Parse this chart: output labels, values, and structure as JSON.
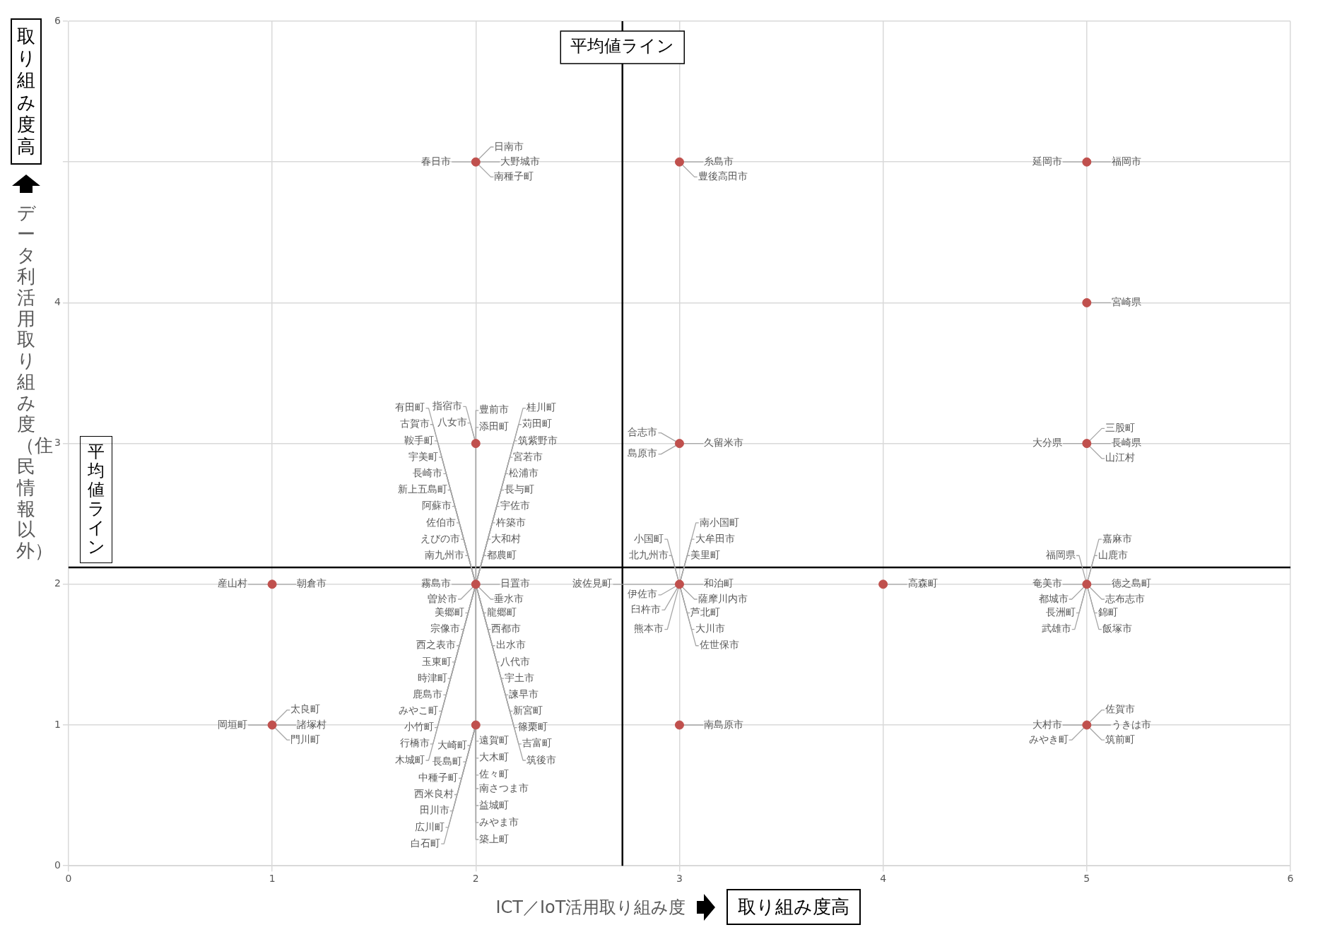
{
  "chart_data": {
    "type": "scatter",
    "xlabel": "ICT／IoT活用取り組み度",
    "ylabel": "データ利活用取り組み度（住民情報以外）",
    "x": [
      2,
      3,
      5,
      5,
      2,
      3,
      5,
      1,
      2,
      3,
      4,
      5,
      1,
      2,
      3,
      5
    ],
    "values": [
      5,
      5,
      5,
      4,
      3,
      3,
      3,
      2,
      2,
      2,
      2,
      2,
      1,
      1,
      1,
      1
    ],
    "color": "#c0504d",
    "marker": "circle",
    "grid": true,
    "xlim": [
      0,
      6
    ],
    "xticks": [
      0,
      1,
      2,
      3,
      4,
      5,
      6
    ],
    "ylim": [
      0,
      6
    ],
    "yticks": [
      0,
      1,
      2,
      3,
      4,
      {
        "value": 5,
        "label": null
      },
      6
    ],
    "ref_lines": [
      {
        "axis": "x",
        "value": 2.72,
        "label": "平均値ライン",
        "color": "#000000"
      },
      {
        "axis": "y",
        "value": 2.12,
        "label": "平均値ライン",
        "color": "#000000"
      }
    ],
    "annotations": [
      "取り組み度高",
      "取り組み度高",
      {
        "text": "大野城市",
        "x": 2,
        "y": 5
      },
      {
        "text": "春日市",
        "x": 2,
        "y": 5
      },
      {
        "text": "南種子町",
        "x": 2,
        "y": 5
      },
      {
        "text": "日南市",
        "x": 2,
        "y": 5
      },
      {
        "text": "糸島市",
        "x": 3,
        "y": 5
      },
      {
        "text": "豊後高田市",
        "x": 3,
        "y": 5
      },
      {
        "text": "福岡市",
        "x": 5,
        "y": 5
      },
      {
        "text": "延岡市",
        "x": 5,
        "y": 5
      },
      {
        "text": "宮崎県",
        "x": 5,
        "y": 4
      },
      {
        "text": "八女市",
        "x": 2,
        "y": 3
      },
      {
        "text": "指宿市",
        "x": 2,
        "y": 3
      },
      {
        "text": "久留米市",
        "x": 3,
        "y": 3
      },
      {
        "text": "島原市",
        "x": 3,
        "y": 3
      },
      {
        "text": "合志市",
        "x": 3,
        "y": 3
      },
      {
        "text": "長崎県",
        "x": 5,
        "y": 3
      },
      {
        "text": "大分県",
        "x": 5,
        "y": 3
      },
      {
        "text": "山江村",
        "x": 5,
        "y": 3
      },
      {
        "text": "三股町",
        "x": 5,
        "y": 3
      },
      {
        "text": "朝倉市",
        "x": 1,
        "y": 2
      },
      {
        "text": "産山村",
        "x": 1,
        "y": 2
      },
      {
        "text": "日置市",
        "x": 2,
        "y": 2
      },
      {
        "text": "霧島市",
        "x": 2,
        "y": 2
      },
      {
        "text": "垂水市",
        "x": 2,
        "y": 2
      },
      {
        "text": "曽於市",
        "x": 2,
        "y": 2
      },
      {
        "text": "龍郷町",
        "x": 2,
        "y": 2
      },
      {
        "text": "都農町",
        "x": 2,
        "y": 2
      },
      {
        "text": "美郷町",
        "x": 2,
        "y": 2
      },
      {
        "text": "南九州市",
        "x": 2,
        "y": 2
      },
      {
        "text": "西都市",
        "x": 2,
        "y": 2
      },
      {
        "text": "大和村",
        "x": 2,
        "y": 2
      },
      {
        "text": "宗像市",
        "x": 2,
        "y": 2
      },
      {
        "text": "えびの市",
        "x": 2,
        "y": 2
      },
      {
        "text": "出水市",
        "x": 2,
        "y": 2
      },
      {
        "text": "杵築市",
        "x": 2,
        "y": 2
      },
      {
        "text": "西之表市",
        "x": 2,
        "y": 2
      },
      {
        "text": "佐伯市",
        "x": 2,
        "y": 2
      },
      {
        "text": "八代市",
        "x": 2,
        "y": 2
      },
      {
        "text": "宇佐市",
        "x": 2,
        "y": 2
      },
      {
        "text": "玉東町",
        "x": 2,
        "y": 2
      },
      {
        "text": "阿蘇市",
        "x": 2,
        "y": 2
      },
      {
        "text": "宇土市",
        "x": 2,
        "y": 2
      },
      {
        "text": "長与町",
        "x": 2,
        "y": 2
      },
      {
        "text": "時津町",
        "x": 2,
        "y": 2
      },
      {
        "text": "新上五島町",
        "x": 2,
        "y": 2
      },
      {
        "text": "諫早市",
        "x": 2,
        "y": 2
      },
      {
        "text": "松浦市",
        "x": 2,
        "y": 2
      },
      {
        "text": "鹿島市",
        "x": 2,
        "y": 2
      },
      {
        "text": "長崎市",
        "x": 2,
        "y": 2
      },
      {
        "text": "新宮町",
        "x": 2,
        "y": 2
      },
      {
        "text": "宮若市",
        "x": 2,
        "y": 2
      },
      {
        "text": "みやこ町",
        "x": 2,
        "y": 2
      },
      {
        "text": "宇美町",
        "x": 2,
        "y": 2
      },
      {
        "text": "篠栗町",
        "x": 2,
        "y": 2
      },
      {
        "text": "筑紫野市",
        "x": 2,
        "y": 2
      },
      {
        "text": "小竹町",
        "x": 2,
        "y": 2
      },
      {
        "text": "鞍手町",
        "x": 2,
        "y": 2
      },
      {
        "text": "遠賀町",
        "x": 2,
        "y": 2
      },
      {
        "text": "添田町",
        "x": 2,
        "y": 2
      },
      {
        "text": "吉富町",
        "x": 2,
        "y": 2
      },
      {
        "text": "苅田町",
        "x": 2,
        "y": 2
      },
      {
        "text": "行橋市",
        "x": 2,
        "y": 2
      },
      {
        "text": "古賀市",
        "x": 2,
        "y": 2
      },
      {
        "text": "大木町",
        "x": 2,
        "y": 2
      },
      {
        "text": "豊前市",
        "x": 2,
        "y": 2
      },
      {
        "text": "筑後市",
        "x": 2,
        "y": 2
      },
      {
        "text": "桂川町",
        "x": 2,
        "y": 2
      },
      {
        "text": "木城町",
        "x": 2,
        "y": 2
      },
      {
        "text": "有田町",
        "x": 2,
        "y": 2
      },
      {
        "text": "佐々町",
        "x": 2,
        "y": 2
      },
      {
        "text": "和泊町",
        "x": 3,
        "y": 2
      },
      {
        "text": "伊佐市",
        "x": 3,
        "y": 2
      },
      {
        "text": "薩摩川内市",
        "x": 3,
        "y": 2
      },
      {
        "text": "臼杵市",
        "x": 3,
        "y": 2
      },
      {
        "text": "芦北町",
        "x": 3,
        "y": 2
      },
      {
        "text": "美里町",
        "x": 3,
        "y": 2
      },
      {
        "text": "北九州市",
        "x": 3,
        "y": 2
      },
      {
        "text": "大川市",
        "x": 3,
        "y": 2
      },
      {
        "text": "大牟田市",
        "x": 3,
        "y": 2
      },
      {
        "text": "波佐見町",
        "x": 3,
        "y": 2
      },
      {
        "text": "佐世保市",
        "x": 3,
        "y": 2
      },
      {
        "text": "熊本市",
        "x": 3,
        "y": 2
      },
      {
        "text": "小国町",
        "x": 3,
        "y": 2
      },
      {
        "text": "南小国町",
        "x": 3,
        "y": 2
      },
      {
        "text": "高森町",
        "x": 4,
        "y": 2
      },
      {
        "text": "徳之島町",
        "x": 5,
        "y": 2
      },
      {
        "text": "奄美市",
        "x": 5,
        "y": 2
      },
      {
        "text": "志布志市",
        "x": 5,
        "y": 2
      },
      {
        "text": "都城市",
        "x": 5,
        "y": 2
      },
      {
        "text": "錦町",
        "x": 5,
        "y": 2
      },
      {
        "text": "山鹿市",
        "x": 5,
        "y": 2
      },
      {
        "text": "長洲町",
        "x": 5,
        "y": 2
      },
      {
        "text": "福岡県",
        "x": 5,
        "y": 2
      },
      {
        "text": "飯塚市",
        "x": 5,
        "y": 2
      },
      {
        "text": "嘉麻市",
        "x": 5,
        "y": 2
      },
      {
        "text": "武雄市",
        "x": 5,
        "y": 2
      },
      {
        "text": "諸塚村",
        "x": 1,
        "y": 1
      },
      {
        "text": "岡垣町",
        "x": 1,
        "y": 1
      },
      {
        "text": "門川町",
        "x": 1,
        "y": 1
      },
      {
        "text": "太良町",
        "x": 1,
        "y": 1
      },
      {
        "text": "中種子町",
        "x": 2,
        "y": 1
      },
      {
        "text": "大崎町",
        "x": 2,
        "y": 1
      },
      {
        "text": "長島町",
        "x": 2,
        "y": 1
      },
      {
        "text": "南さつま市",
        "x": 2,
        "y": 1
      },
      {
        "text": "西米良村",
        "x": 2,
        "y": 1
      },
      {
        "text": "益城町",
        "x": 2,
        "y": 1
      },
      {
        "text": "田川市",
        "x": 2,
        "y": 1
      },
      {
        "text": "みやま市",
        "x": 2,
        "y": 1
      },
      {
        "text": "広川町",
        "x": 2,
        "y": 1
      },
      {
        "text": "築上町",
        "x": 2,
        "y": 1
      },
      {
        "text": "白石町",
        "x": 2,
        "y": 1
      },
      {
        "text": "南島原市",
        "x": 3,
        "y": 1
      },
      {
        "text": "うきは市",
        "x": 5,
        "y": 1
      },
      {
        "text": "大村市",
        "x": 5,
        "y": 1
      },
      {
        "text": "筑前町",
        "x": 5,
        "y": 1
      },
      {
        "text": "佐賀市",
        "x": 5,
        "y": 1
      },
      {
        "text": "みやき町",
        "x": 5,
        "y": 1
      }
    ]
  }
}
